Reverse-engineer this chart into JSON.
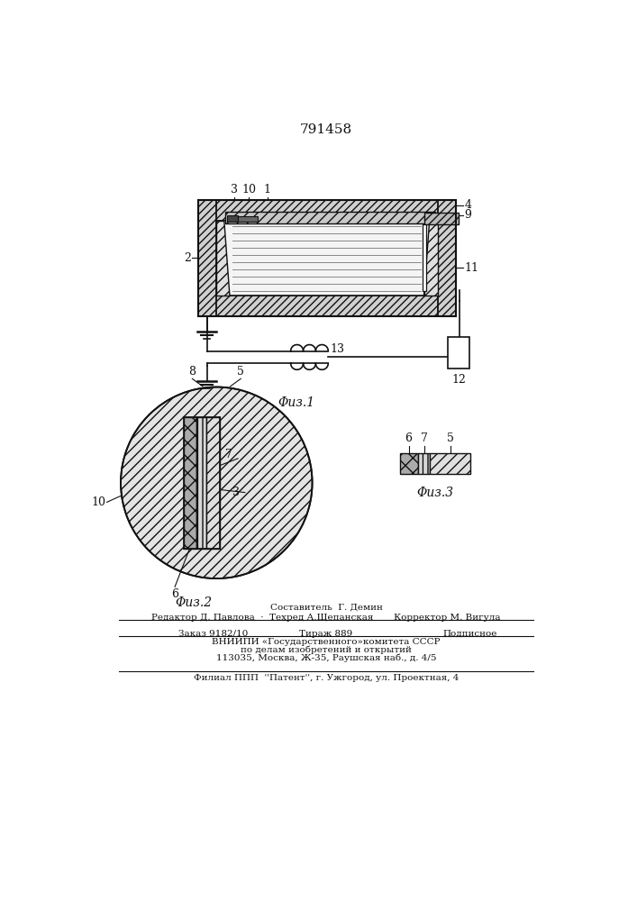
{
  "patent_number": "791458",
  "fig1_caption": "Φиз.1",
  "fig2_caption": "Φиз.2",
  "fig3_caption": "Φиз.3",
  "bg_color": "#ffffff",
  "line_color": "#111111",
  "footer_sestavitel": "Составитель  Г. Демин",
  "footer_redaktor": "Редактор Д. Павлова",
  "footer_tekhred": "Техред А.Щепанская",
  "footer_korrektor": "Корректор М. Вигула",
  "footer_zakaz": "Заказ 9182/10",
  "footer_tirazh": "Тираж 889",
  "footer_podpisnoe": "Подписное",
  "footer_vniip1": "ВНИИПИ «Государственного»комитета СССР",
  "footer_vniip2": "по делам изобретений и открытий",
  "footer_addr": "113035, Москва, Ж-35, Раушская наб., д. 4/5",
  "footer_filial": "Филиал ППП  ''Патент'', г. Ужгород, ул. Проектная, 4"
}
